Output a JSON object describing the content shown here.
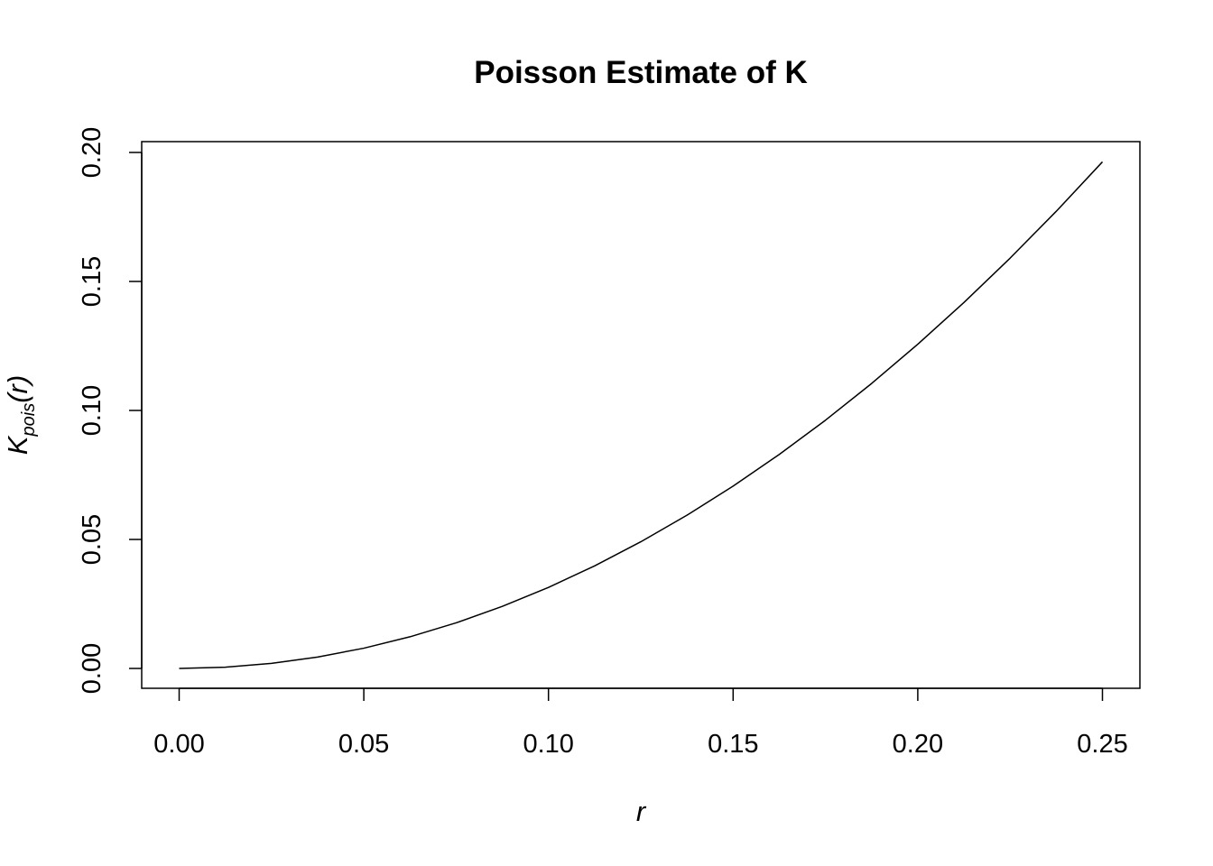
{
  "chart_data": {
    "type": "line",
    "title": "Poisson Estimate of K",
    "xlabel": "r",
    "ylabel": {
      "main": "K",
      "subscript": "pois",
      "suffix": "(r)"
    },
    "xlim": [
      0.0,
      0.25
    ],
    "ylim": [
      0.0,
      0.2
    ],
    "x_ticks": [
      0.0,
      0.05,
      0.1,
      0.15,
      0.2,
      0.25
    ],
    "x_tick_labels": [
      "0.00",
      "0.05",
      "0.10",
      "0.15",
      "0.20",
      "0.25"
    ],
    "y_ticks": [
      0.0,
      0.05,
      0.1,
      0.15,
      0.2
    ],
    "y_tick_labels": [
      "0.00",
      "0.05",
      "0.10",
      "0.15",
      "0.20"
    ],
    "grid": false,
    "series": [
      {
        "color": "#000000",
        "x": [
          0.0,
          0.0125,
          0.025,
          0.0375,
          0.05,
          0.0625,
          0.075,
          0.0875,
          0.1,
          0.1125,
          0.125,
          0.1375,
          0.15,
          0.1625,
          0.175,
          0.1875,
          0.2,
          0.2125,
          0.225,
          0.2375,
          0.25
        ],
        "y": [
          0.0,
          0.00049,
          0.00196,
          0.00442,
          0.00785,
          0.01227,
          0.01767,
          0.02405,
          0.03142,
          0.03976,
          0.04909,
          0.0594,
          0.07069,
          0.08296,
          0.09621,
          0.11045,
          0.12566,
          0.14186,
          0.15904,
          0.1772,
          0.19635
        ]
      }
    ]
  }
}
